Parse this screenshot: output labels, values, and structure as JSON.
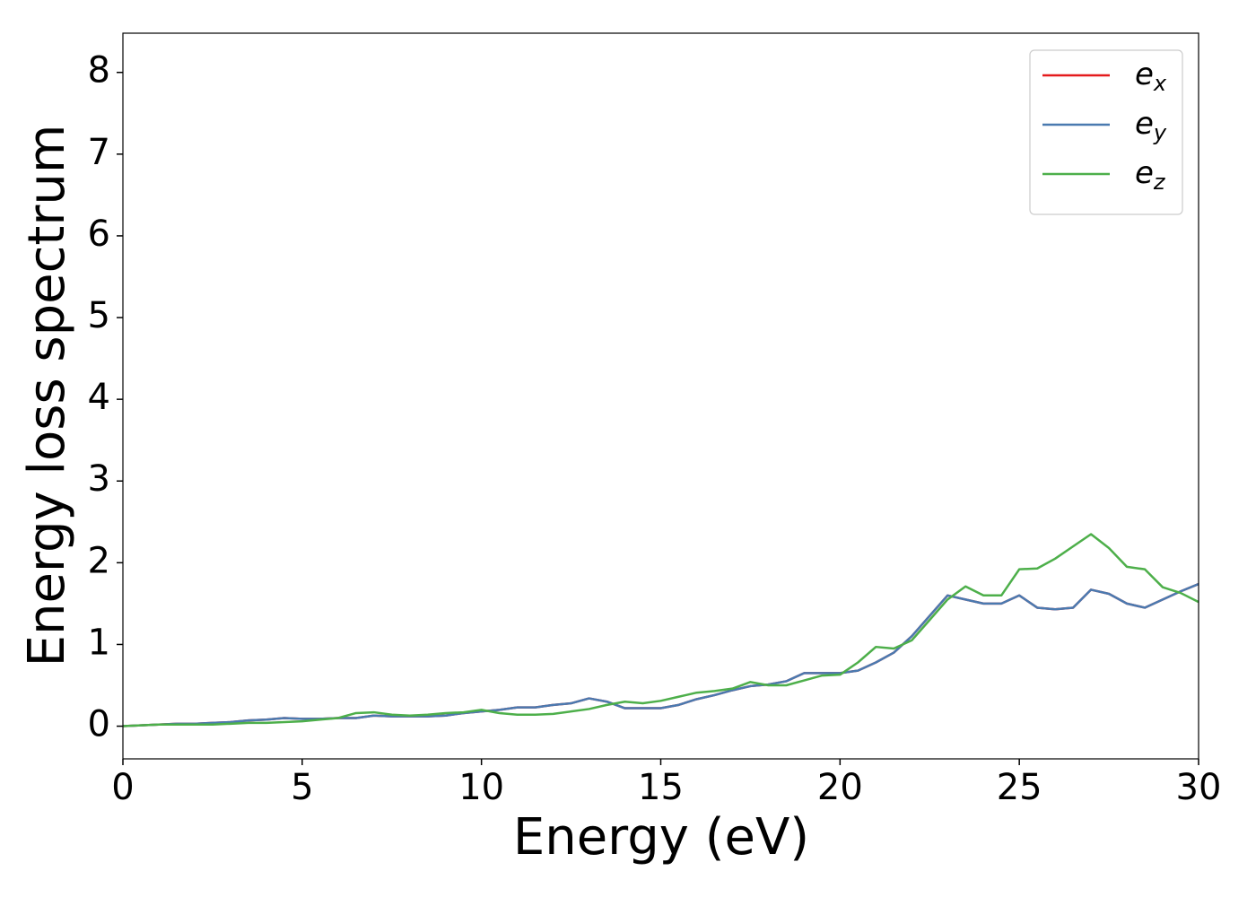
{
  "chart_data": {
    "type": "line",
    "xlabel": "Energy (eV)",
    "ylabel": "Energy loss spectrum",
    "x": [
      0,
      0.5,
      1,
      1.5,
      2,
      2.5,
      3,
      3.5,
      4,
      4.5,
      5,
      5.5,
      6,
      6.5,
      7,
      7.5,
      8,
      8.5,
      9,
      9.5,
      10,
      10.5,
      11,
      11.5,
      12,
      12.5,
      13,
      13.5,
      14,
      14.5,
      15,
      15.5,
      16,
      16.5,
      17,
      17.5,
      18,
      18.5,
      19,
      19.5,
      20,
      20.5,
      21,
      21.5,
      22,
      22.5,
      23,
      23.5,
      24,
      24.5,
      25,
      25.5,
      26,
      26.5,
      27,
      27.5,
      28,
      28.5,
      29,
      29.5,
      30
    ],
    "series": [
      {
        "name": "e_x",
        "color": "#e41a1c",
        "values": [
          0,
          0.01,
          0.02,
          0.03,
          0.03,
          0.04,
          0.05,
          0.07,
          0.08,
          0.1,
          0.09,
          0.09,
          0.1,
          0.1,
          0.13,
          0.12,
          0.12,
          0.12,
          0.13,
          0.16,
          0.18,
          0.2,
          0.23,
          0.23,
          0.26,
          0.28,
          0.34,
          0.3,
          0.22,
          0.22,
          0.22,
          0.26,
          0.33,
          0.38,
          0.44,
          0.49,
          0.51,
          0.55,
          0.65,
          0.65,
          0.65,
          0.68,
          0.78,
          0.9,
          1.1,
          1.35,
          1.6,
          1.55,
          1.5,
          1.5,
          1.6,
          1.45,
          1.43,
          1.45,
          1.67,
          1.62,
          1.5,
          1.45,
          1.55,
          1.65,
          1.74
        ]
      },
      {
        "name": "e_y",
        "color": "#4a7ab0",
        "values": [
          0,
          0.01,
          0.02,
          0.03,
          0.03,
          0.04,
          0.05,
          0.07,
          0.08,
          0.1,
          0.09,
          0.09,
          0.1,
          0.1,
          0.13,
          0.12,
          0.12,
          0.12,
          0.13,
          0.16,
          0.18,
          0.2,
          0.23,
          0.23,
          0.26,
          0.28,
          0.34,
          0.3,
          0.22,
          0.22,
          0.22,
          0.26,
          0.33,
          0.38,
          0.44,
          0.49,
          0.51,
          0.55,
          0.65,
          0.65,
          0.65,
          0.68,
          0.78,
          0.9,
          1.1,
          1.35,
          1.6,
          1.55,
          1.5,
          1.5,
          1.6,
          1.45,
          1.43,
          1.45,
          1.67,
          1.62,
          1.5,
          1.45,
          1.55,
          1.65,
          1.74
        ]
      },
      {
        "name": "e_z",
        "color": "#4daf4a",
        "values": [
          0,
          0.01,
          0.02,
          0.02,
          0.02,
          0.02,
          0.03,
          0.04,
          0.04,
          0.05,
          0.06,
          0.08,
          0.1,
          0.16,
          0.17,
          0.14,
          0.13,
          0.14,
          0.16,
          0.17,
          0.2,
          0.16,
          0.14,
          0.14,
          0.15,
          0.18,
          0.21,
          0.26,
          0.3,
          0.28,
          0.31,
          0.36,
          0.41,
          0.43,
          0.46,
          0.54,
          0.5,
          0.5,
          0.56,
          0.62,
          0.63,
          0.78,
          0.97,
          0.95,
          1.05,
          1.3,
          1.55,
          1.71,
          1.6,
          1.6,
          1.92,
          1.93,
          2.05,
          2.2,
          2.35,
          2.18,
          1.95,
          1.92,
          1.7,
          1.63,
          1.52
        ]
      }
    ],
    "xlim": [
      0,
      30
    ],
    "xticks": [
      0,
      5,
      10,
      15,
      20,
      25,
      30
    ],
    "ylim": [
      -0.4,
      8.48
    ],
    "yticks": [
      0,
      1,
      2,
      3,
      4,
      5,
      6,
      7,
      8
    ],
    "legend": "upper right"
  }
}
